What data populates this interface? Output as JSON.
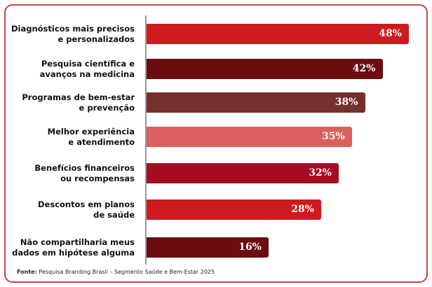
{
  "chart_data": {
    "type": "bar",
    "orientation": "horizontal",
    "categories": [
      [
        "Diagnósticos mais precisos",
        "e personalizados"
      ],
      [
        "Pesquisa científica e",
        "avanços na medicina"
      ],
      [
        "Programas de bem-estar",
        "e prevenção"
      ],
      [
        "Melhor experiência",
        "e atendimento"
      ],
      [
        "Benefícios financeiros",
        "ou recompensas"
      ],
      [
        "Descontos em planos",
        "de saúde"
      ],
      [
        "Não compartilharia meus",
        "dados em hipótese alguma"
      ]
    ],
    "values": [
      48,
      42,
      38,
      35,
      32,
      28,
      16
    ],
    "value_labels": [
      "48%",
      "42%",
      "38%",
      "35%",
      "32%",
      "28%",
      "16%"
    ],
    "colors": [
      "#cc1a1f",
      "#6a0c10",
      "#74302c",
      "#d9605c",
      "#a50d22",
      "#cc1a1f",
      "#6a0c10"
    ],
    "grid": false
  },
  "source": {
    "label": "Fonte:",
    "text": " Pesquisa Branding Brasil – Segmento Saúde e Bem-Estar 2025"
  }
}
